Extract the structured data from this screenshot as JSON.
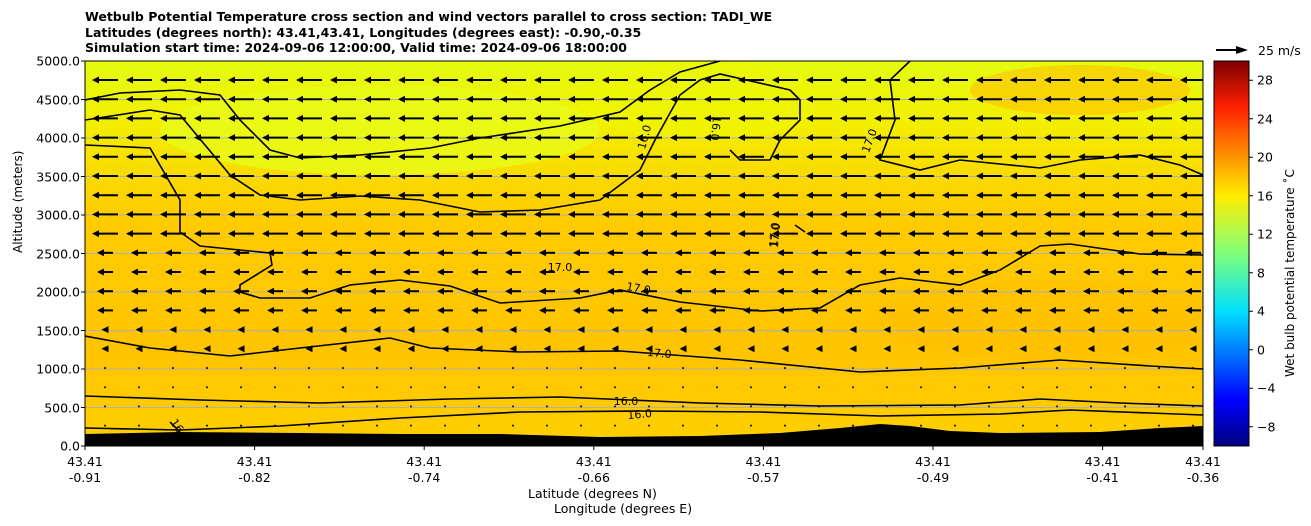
{
  "chart_data": {
    "type": "heatmap",
    "title_lines": [
      "Wetbulb Potential Temperature cross section and wind vectors parallel to cross section: TADI_WE",
      "Latitudes (degrees north): 43.41,43.41, Longitudes (degrees east): -0.90,-0.35",
      "Simulation start time: 2024-09-06 12:00:00, Valid time: 2024-09-06 18:00:00"
    ],
    "ylabel": "Altitude (meters)",
    "xlabel_lat": "Latitude (degrees N)",
    "xlabel_lon": "Longitude (degrees E)",
    "ylim": [
      0,
      5000
    ],
    "yticks": [
      "0.0",
      "500.0",
      "1000.0",
      "1500.0",
      "2000.0",
      "2500.0",
      "3000.0",
      "3500.0",
      "4000.0",
      "4500.0",
      "5000.0"
    ],
    "xticks": [
      {
        "lat": "43.41",
        "lon": "-0.91"
      },
      {
        "lat": "43.41",
        "lon": "-0.82"
      },
      {
        "lat": "43.41",
        "lon": "-0.74"
      },
      {
        "lat": "43.41",
        "lon": "-0.66"
      },
      {
        "lat": "43.41",
        "lon": "-0.57"
      },
      {
        "lat": "43.41",
        "lon": "-0.49"
      },
      {
        "lat": "43.41",
        "lon": "-0.41"
      },
      {
        "lat": "43.41",
        "lon": "-0.36"
      }
    ],
    "colorbar": {
      "label": "Wet bulb potential temperature ˚C",
      "range": [
        -10,
        30
      ],
      "ticks": [
        "−8",
        "−4",
        "0",
        "4",
        "8",
        "12",
        "16",
        "20",
        "24",
        "28"
      ],
      "colormap": "jet"
    },
    "contour_labels": [
      "17.0",
      "17.0",
      "17.0",
      "17.0",
      "17.0",
      "16.0",
      "16.0",
      "16.0",
      "16.0",
      "17.0",
      "16"
    ],
    "vector_key": {
      "label": "25 m/s"
    },
    "grid": true
  }
}
